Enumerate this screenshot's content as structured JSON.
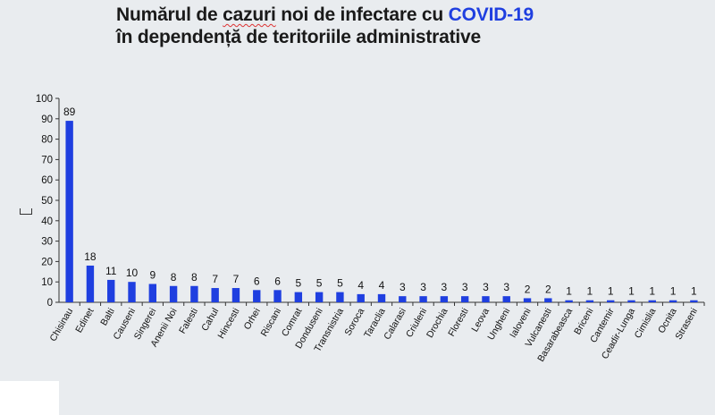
{
  "title": {
    "line1_prefix": "Numărul de ",
    "line1_squiggle": "cazuri",
    "line1_mid": " noi de infectare cu ",
    "line1_highlight": "COVID-19",
    "line2": "în dependență de teritoriile administrative"
  },
  "colors": {
    "bar": "#1f3fe0",
    "highlight": "#1f3fe0"
  },
  "chart_data": {
    "type": "bar",
    "title": "Numărul de cazuri noi de infectare cu COVID-19 în dependență de teritoriile administrative",
    "xlabel": "",
    "ylabel": "",
    "ylim": [
      0,
      100
    ],
    "yticks": [
      0,
      10,
      20,
      30,
      40,
      50,
      60,
      70,
      80,
      90,
      100
    ],
    "grid": false,
    "legend": "none",
    "categories": [
      "Chisinau",
      "Edinet",
      "Balti",
      "Causeni",
      "Singerei",
      "Anenii Noi",
      "Falesti",
      "Cahul",
      "Hincesti",
      "Orhei",
      "Riscani",
      "Comrat",
      "Donduseni",
      "Transnistria",
      "Soroca",
      "Taraclia",
      "Calarasi",
      "Criuleni",
      "Drochia",
      "Floresti",
      "Leova",
      "Ungheni",
      "Ialoveni",
      "Vulcanesti",
      "Basarabeasca",
      "Briceni",
      "Cantemir",
      "Ceadir-Lunga",
      "Cimislia",
      "Ocnita",
      "Straseni"
    ],
    "values": [
      89,
      18,
      11,
      10,
      9,
      8,
      8,
      7,
      7,
      6,
      6,
      5,
      5,
      5,
      4,
      4,
      3,
      3,
      3,
      3,
      3,
      3,
      2,
      2,
      1,
      1,
      1,
      1,
      1,
      1,
      1
    ]
  }
}
